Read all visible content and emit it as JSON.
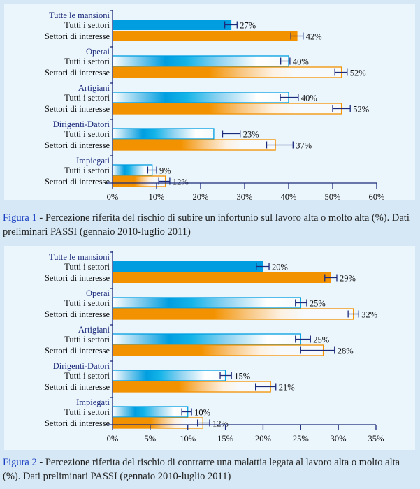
{
  "colors": {
    "blue": "#009ee0",
    "orange": "#f39200",
    "navy": "#1b2a7a",
    "group_label": "#1b2a7a",
    "figure_label": "#1a3fc2"
  },
  "figure1": {
    "label": "Figura 1",
    "caption": " - Percezione riferita del rischio di subire un infortunio sul lavoro alta o molto alta (%). Dati preliminari PASSI (gennaio 2010-luglio 2011)"
  },
  "figure2": {
    "label": "Figura 2",
    "caption": " - Percezione riferita del rischio di contrarre una malattia legata al lavoro alta o molto alta (%). Dati preliminari PASSI (gennaio 2010-luglio 2011)"
  },
  "chart_data": [
    {
      "type": "bar",
      "orientation": "horizontal",
      "xlim": [
        0,
        60
      ],
      "ticks": [
        "0%",
        "10%",
        "20%",
        "30%",
        "40%",
        "50%",
        "60%"
      ],
      "tick_values": [
        0,
        10,
        20,
        30,
        40,
        50,
        60
      ],
      "groups": [
        {
          "name": "Tutte le mansioni",
          "solid": true,
          "bars": [
            {
              "label": "Tutti i settori",
              "series": "blue",
              "value": 27,
              "value_label": "27%",
              "err": [
                25.5,
                28.3
              ]
            },
            {
              "label": "Settori di interesse",
              "series": "orange",
              "value": 42,
              "value_label": "42%",
              "err": [
                40.5,
                43.3
              ]
            }
          ]
        },
        {
          "name": "Operai",
          "solid": false,
          "bars": [
            {
              "label": "Tutti i settori",
              "series": "blue",
              "value": 40,
              "value_label": "40%",
              "err": [
                38.2,
                40.3
              ]
            },
            {
              "label": "Settori di interesse",
              "series": "orange",
              "value": 52,
              "value_label": "52%",
              "err": [
                50.5,
                53.3
              ]
            }
          ]
        },
        {
          "name": "Artigiani",
          "solid": false,
          "bars": [
            {
              "label": "Tutti i settori",
              "series": "blue",
              "value": 40,
              "value_label": "40%",
              "err": [
                38.1,
                42.2
              ]
            },
            {
              "label": "Settori di interesse",
              "series": "orange",
              "value": 52,
              "value_label": "52%",
              "err": [
                50,
                54
              ]
            }
          ]
        },
        {
          "name": "Dirigenti-Datori",
          "solid": false,
          "bars": [
            {
              "label": "Tutti i settori",
              "series": "blue",
              "value": 23,
              "value_label": "23%",
              "err": [
                25,
                29
              ]
            },
            {
              "label": "Settori di interesse",
              "series": "orange",
              "value": 37,
              "value_label": "37%",
              "err": [
                35,
                41
              ]
            }
          ]
        },
        {
          "name": "Impiegati",
          "solid": false,
          "bars": [
            {
              "label": "Tutti i settori",
              "series": "blue",
              "value": 9,
              "value_label": "9%",
              "err": [
                8,
                10
              ]
            },
            {
              "label": "Settori di interesse",
              "series": "orange",
              "value": 12,
              "value_label": "12%",
              "err": [
                10.5,
                13
              ]
            }
          ]
        }
      ]
    },
    {
      "type": "bar",
      "orientation": "horizontal",
      "xlim": [
        0,
        35
      ],
      "ticks": [
        "0%",
        "5%",
        "10%",
        "15%",
        "20%",
        "25%",
        "30%",
        "35%"
      ],
      "tick_values": [
        0,
        5,
        10,
        15,
        20,
        25,
        30,
        35
      ],
      "groups": [
        {
          "name": "Tutte le mansioni",
          "solid": true,
          "bars": [
            {
              "label": "Tutti i settori",
              "series": "blue",
              "value": 20,
              "value_label": "20%",
              "err": [
                19.1,
                20.8
              ]
            },
            {
              "label": "Settori di interesse",
              "series": "orange",
              "value": 29,
              "value_label": "29%",
              "err": [
                28.2,
                29.8
              ]
            }
          ]
        },
        {
          "name": "Operai",
          "solid": false,
          "bars": [
            {
              "label": "Tutti i settori",
              "series": "blue",
              "value": 25,
              "value_label": "25%",
              "err": [
                24.3,
                25.8
              ]
            },
            {
              "label": "Settori di interesse",
              "series": "orange",
              "value": 32,
              "value_label": "32%",
              "err": [
                31.3,
                32.7
              ]
            }
          ]
        },
        {
          "name": "Artigiani",
          "solid": false,
          "bars": [
            {
              "label": "Tutti i settori",
              "series": "blue",
              "value": 25,
              "value_label": "25%",
              "err": [
                24.3,
                26.3
              ]
            },
            {
              "label": "Settori di interesse",
              "series": "orange",
              "value": 28,
              "value_label": "28%",
              "err": [
                25,
                29.5
              ]
            }
          ]
        },
        {
          "name": "Dirigenti-Datori",
          "solid": false,
          "bars": [
            {
              "label": "Tutti i settori",
              "series": "blue",
              "value": 15,
              "value_label": "15%",
              "err": [
                14.3,
                15.8
              ]
            },
            {
              "label": "Settori di interesse",
              "series": "orange",
              "value": 21,
              "value_label": "21%",
              "err": [
                19,
                21.7
              ]
            }
          ]
        },
        {
          "name": "Impiegati",
          "solid": false,
          "bars": [
            {
              "label": "Tutti i settori",
              "series": "blue",
              "value": 10,
              "value_label": "10%",
              "err": [
                9.2,
                10.5
              ]
            },
            {
              "label": "Settori di interesse",
              "series": "orange",
              "value": 12,
              "value_label": "12%",
              "err": [
                11.3,
                12.9
              ]
            }
          ]
        }
      ]
    }
  ]
}
